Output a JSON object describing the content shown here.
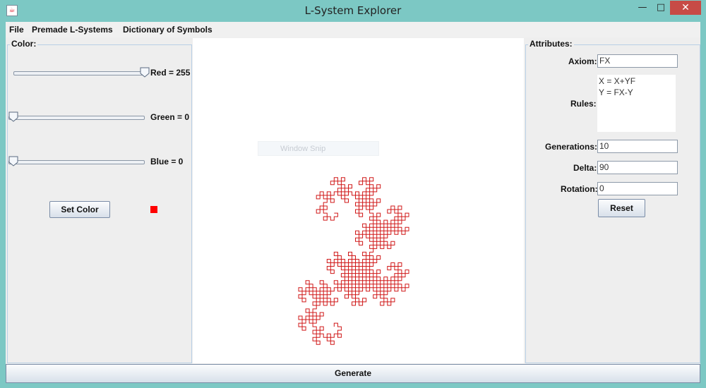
{
  "window": {
    "title": "L-System Explorer",
    "minimize_glyph": "—",
    "maximize_glyph": "□",
    "close_glyph": "✕"
  },
  "menu": {
    "file": "File",
    "premade": "Premade L-Systems",
    "dictionary": "Dictionary of Symbols"
  },
  "color_panel": {
    "title": "Color:",
    "red_label": "Red = 255",
    "green_label": "Green = 0",
    "blue_label": "Blue = 0",
    "red_value": 255,
    "green_value": 0,
    "blue_value": 0,
    "set_color_label": "Set Color",
    "preview_color": "#ff0000"
  },
  "canvas": {
    "overlay_text": "Window Snip",
    "curve_color": "#d01818",
    "curve": "dragon-curve",
    "generations": 10
  },
  "attributes": {
    "title": "Attributes:",
    "axiom_label": "Axiom:",
    "axiom_value": "FX",
    "rules_label": "Rules:",
    "rules": [
      "X = X+YF",
      "Y = FX-Y"
    ],
    "generations_label": "Generations:",
    "generations_value": "10",
    "delta_label": "Delta:",
    "delta_value": "90",
    "rotation_label": "Rotation:",
    "rotation_value": "0",
    "reset_label": "Reset"
  },
  "generate_label": "Generate"
}
